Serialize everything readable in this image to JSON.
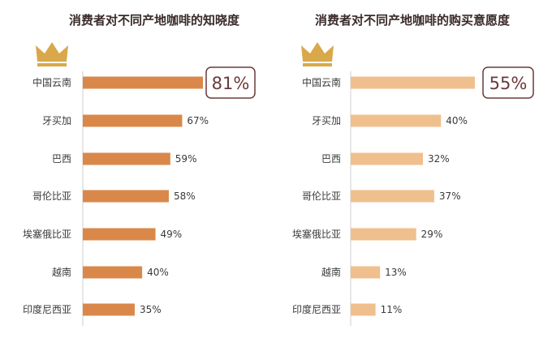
{
  "chart_data": [
    {
      "type": "bar",
      "orientation": "horizontal",
      "title": "消费者对不同产地咖啡的知晓度",
      "categories": [
        "中国云南",
        "牙买加",
        "巴西",
        "哥伦比亚",
        "埃塞俄比亚",
        "越南",
        "印度尼西亚"
      ],
      "values": [
        81,
        67,
        59,
        58,
        49,
        40,
        35
      ],
      "labels": [
        "81%",
        "67%",
        "59%",
        "58%",
        "49%",
        "40%",
        "35%"
      ],
      "unit": "%",
      "xlim": [
        0,
        100
      ],
      "color": "#d9884a",
      "highlight_index": 0,
      "crown": true
    },
    {
      "type": "bar",
      "orientation": "horizontal",
      "title": "消费者对不同产地咖啡的购买意愿度",
      "categories": [
        "中国云南",
        "牙买加",
        "巴西",
        "哥伦比亚",
        "埃塞俄比亚",
        "越南",
        "印度尼西亚"
      ],
      "values": [
        55,
        40,
        32,
        37,
        29,
        13,
        11
      ],
      "labels": [
        "55%",
        "40%",
        "32%",
        "37%",
        "29%",
        "13%",
        "11%"
      ],
      "unit": "%",
      "xlim": [
        0,
        60
      ],
      "color": "#f0bf8e",
      "highlight_index": 0,
      "crown": true
    }
  ],
  "colors": {
    "axis": "#cfcfcf",
    "highlight_border": "#6b3a3a",
    "crown": "#d9a84a"
  }
}
